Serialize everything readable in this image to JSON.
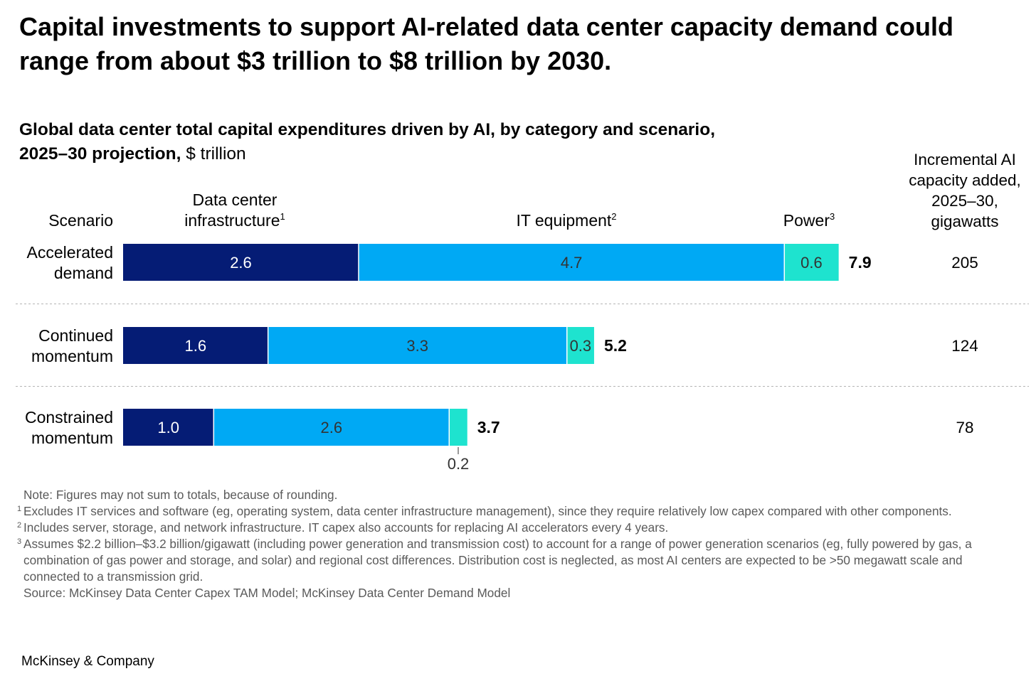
{
  "headline": "Capital investments to support AI-related data center capacity demand could range from about $3 trillion to $8 trillion by 2030.",
  "subtitle": {
    "bold": "Global data center total capital expenditures driven by AI, by category and scenario, 2025–30 projection,",
    "unit": "$ trillion"
  },
  "colors": {
    "infrastructure": "#051C75",
    "it_equipment": "#00A9F4",
    "power": "#1EE3CF",
    "divider": "#b5b5b5"
  },
  "chart_data": {
    "type": "bar",
    "orientation": "horizontal-stacked",
    "row_header": "Scenario",
    "categories": [
      "Accelerated demand",
      "Continued momentum",
      "Constrained momentum"
    ],
    "category_lines": [
      [
        "Accelerated",
        "demand"
      ],
      [
        "Continued",
        "momentum"
      ],
      [
        "Constrained",
        "momentum"
      ]
    ],
    "series": [
      {
        "name": "Data center infrastructure",
        "label_lines": [
          "Data center",
          "infrastructure"
        ],
        "sup": "1",
        "values": [
          2.6,
          1.6,
          1.0
        ]
      },
      {
        "name": "IT equipment",
        "label_lines": [
          "IT equipment"
        ],
        "sup": "2",
        "values": [
          4.7,
          3.3,
          2.6
        ]
      },
      {
        "name": "Power",
        "label_lines": [
          "Power"
        ],
        "sup": "3",
        "values": [
          0.6,
          0.3,
          0.2
        ]
      }
    ],
    "value_labels": [
      [
        "2.6",
        "4.7",
        "0.6"
      ],
      [
        "1.6",
        "3.3",
        "0.3"
      ],
      [
        "1.0",
        "2.6",
        "0.2"
      ]
    ],
    "totals": [
      "7.9",
      "5.2",
      "3.7"
    ],
    "extra_column": {
      "header_lines": [
        "Incremental AI",
        "capacity added,",
        "2025–30,",
        "gigawatts"
      ],
      "values": [
        "205",
        "124",
        "78"
      ]
    },
    "xlabel": "",
    "ylabel": "",
    "xlim": [
      0,
      8
    ],
    "grid": false,
    "legend": "column headers above bars"
  },
  "footnotes": {
    "note": "Note: Figures may not sum to totals, because of rounding.",
    "fn1_num": "1",
    "fn1": "Excludes IT services and software (eg, operating system, data center infrastructure management), since they require relatively low capex compared with other components.",
    "fn2_num": "2",
    "fn2": "Includes server, storage, and network infrastructure. IT capex also accounts for replacing AI accelerators every 4 years.",
    "fn3_num": "3",
    "fn3": "Assumes $2.2 billion–$3.2 billion/gigawatt (including power generation and transmission cost) to account for a range of power generation scenarios (eg, fully powered by gas, a combination of gas power and storage, and solar) and regional cost differences. Distribution cost is neglected, as most AI centers are expected to be >50 megawatt scale and connected to a transmission grid.",
    "source": "Source: McKinsey Data Center Capex TAM Model; McKinsey Data Center Demand Model"
  },
  "brand": "McKinsey & Company"
}
